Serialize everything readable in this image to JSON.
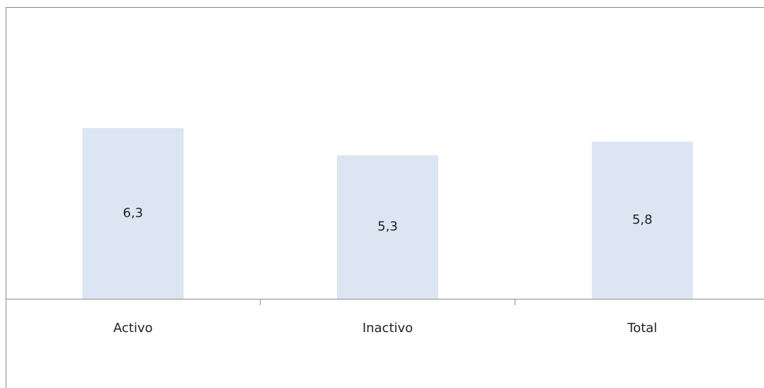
{
  "chart_data": {
    "type": "bar",
    "categories": [
      "Activo",
      "Inactivo",
      "Total"
    ],
    "values": [
      6.3,
      5.3,
      5.8
    ],
    "value_labels": [
      "6,3",
      "5,3",
      "5,8"
    ],
    "color": "#dce6f2",
    "ylim": [
      0,
      10
    ]
  }
}
